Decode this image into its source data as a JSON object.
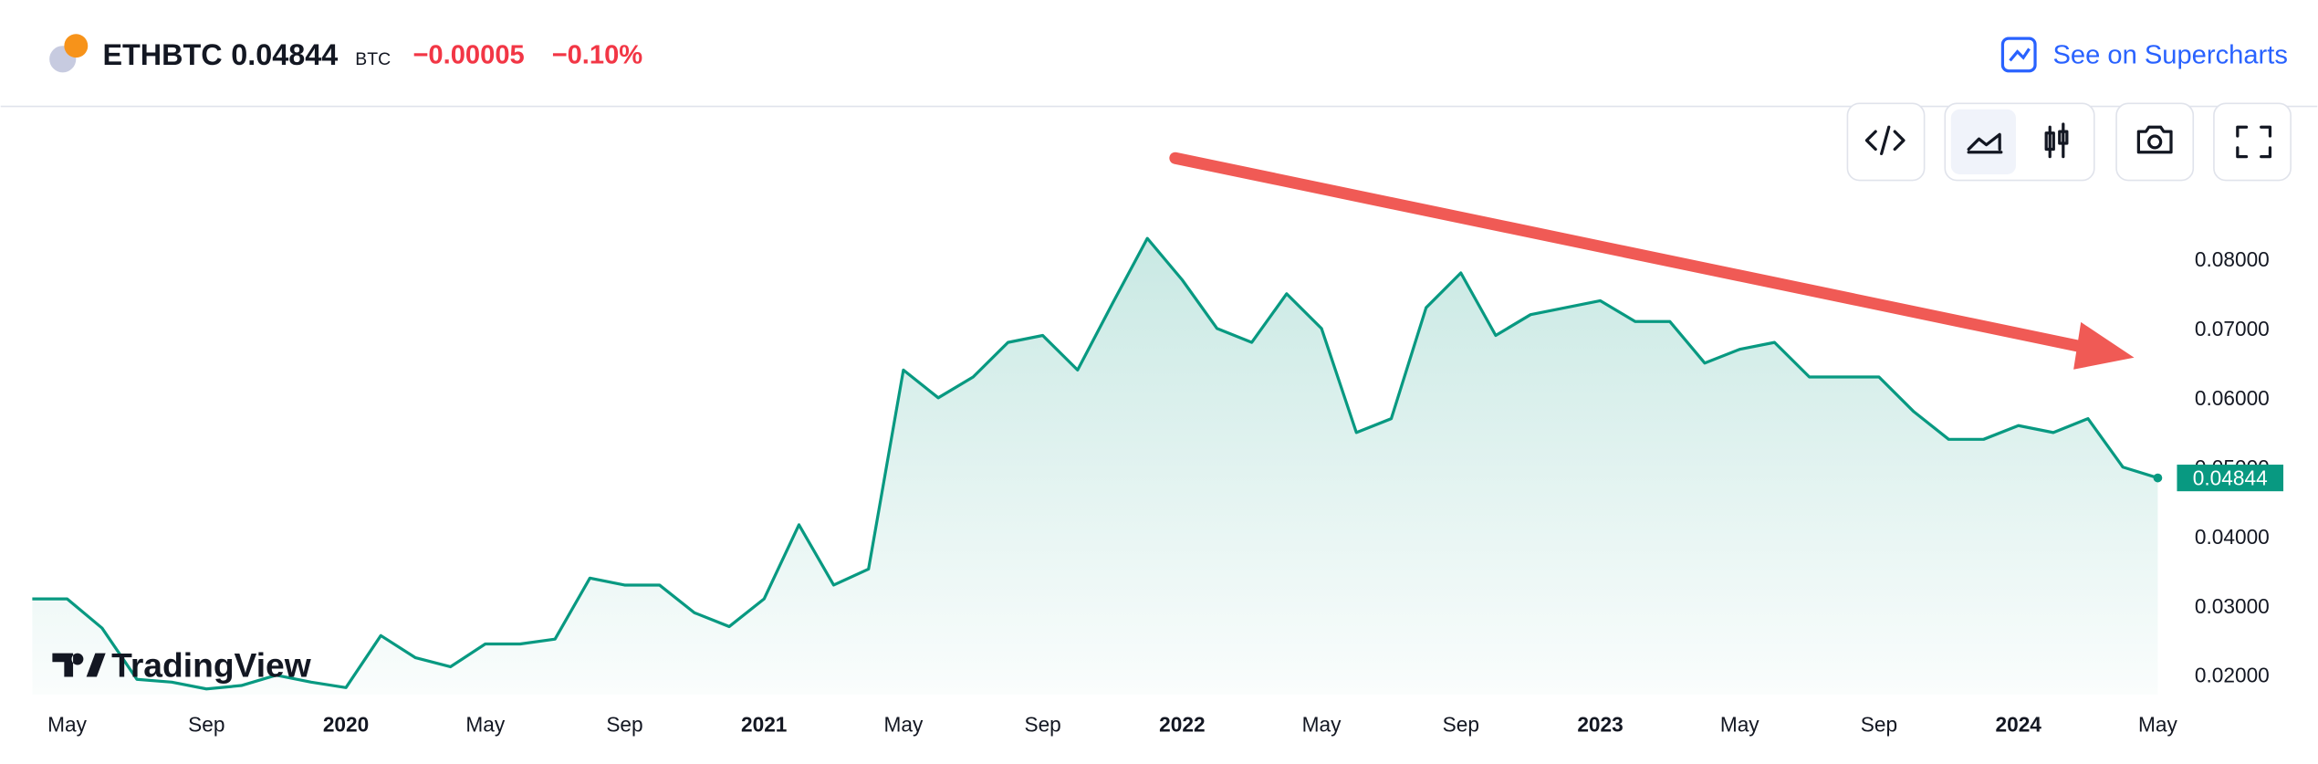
{
  "header": {
    "symbol": "ETHBTC",
    "price": "0.04844",
    "currency": "BTC",
    "change": "−0.00005",
    "change_percent": "−0.10%",
    "link": "See on Supercharts"
  },
  "logo": "TradingView",
  "chart_data": {
    "type": "line",
    "color": "#089981",
    "x": [
      "2019-04",
      "2019-05",
      "2019-06",
      "2019-07",
      "2019-08",
      "2019-09",
      "2019-10",
      "2019-11",
      "2019-12",
      "2020-01",
      "2020-02",
      "2020-03",
      "2020-04",
      "2020-05",
      "2020-06",
      "2020-07",
      "2020-08",
      "2020-09",
      "2020-10",
      "2020-11",
      "2020-12",
      "2021-01",
      "2021-02",
      "2021-03",
      "2021-04",
      "2021-05",
      "2021-06",
      "2021-07",
      "2021-08",
      "2021-09",
      "2021-10",
      "2021-11",
      "2021-12",
      "2022-01",
      "2022-02",
      "2022-03",
      "2022-04",
      "2022-05",
      "2022-06",
      "2022-07",
      "2022-08",
      "2022-09",
      "2022-10",
      "2022-11",
      "2022-12",
      "2023-01",
      "2023-02",
      "2023-03",
      "2023-04",
      "2023-05",
      "2023-06",
      "2023-07",
      "2023-08",
      "2023-09",
      "2023-10",
      "2023-11",
      "2023-12",
      "2024-01",
      "2024-02",
      "2024-03",
      "2024-04",
      "2024-05"
    ],
    "values": [
      0.031,
      0.031,
      0.0268,
      0.0194,
      0.019,
      0.018,
      0.0185,
      0.02,
      0.019,
      0.0182,
      0.0257,
      0.0225,
      0.0212,
      0.0245,
      0.0245,
      0.0252,
      0.034,
      0.033,
      0.033,
      0.029,
      0.027,
      0.031,
      0.0417,
      0.033,
      0.0353,
      0.064,
      0.06,
      0.063,
      0.068,
      0.069,
      0.064,
      0.0736,
      0.083,
      0.077,
      0.07,
      0.068,
      0.075,
      0.07,
      0.055,
      0.057,
      0.073,
      0.078,
      0.069,
      0.072,
      0.073,
      0.074,
      0.071,
      0.071,
      0.065,
      0.067,
      0.068,
      0.063,
      0.063,
      0.063,
      0.058,
      0.054,
      0.054,
      0.056,
      0.055,
      0.057,
      0.05,
      0.04844
    ],
    "ylim": [
      0.0172,
      0.0918
    ],
    "yticks": [
      {
        "value": 0.02,
        "label": "0.02000"
      },
      {
        "value": 0.03,
        "label": "0.03000"
      },
      {
        "value": 0.04,
        "label": "0.04000"
      },
      {
        "value": 0.05,
        "label": "0.05000"
      },
      {
        "value": 0.06,
        "label": "0.06000"
      },
      {
        "value": 0.07,
        "label": "0.07000"
      },
      {
        "value": 0.08,
        "label": "0.08000"
      }
    ],
    "xticks": [
      {
        "value": "2019-05",
        "label": "May"
      },
      {
        "value": "2019-09",
        "label": "Sep"
      },
      {
        "value": "2020-01",
        "label": "2020"
      },
      {
        "value": "2020-05",
        "label": "May"
      },
      {
        "value": "2020-09",
        "label": "Sep"
      },
      {
        "value": "2021-01",
        "label": "2021"
      },
      {
        "value": "2021-05",
        "label": "May"
      },
      {
        "value": "2021-09",
        "label": "Sep"
      },
      {
        "value": "2022-01",
        "label": "2022"
      },
      {
        "value": "2022-05",
        "label": "May"
      },
      {
        "value": "2022-09",
        "label": "Sep"
      },
      {
        "value": "2023-01",
        "label": "2023"
      },
      {
        "value": "2023-05",
        "label": "May"
      },
      {
        "value": "2023-09",
        "label": "Sep"
      },
      {
        "value": "2024-01",
        "label": "2024"
      },
      {
        "value": "2024-05",
        "label": "May"
      }
    ]
  }
}
